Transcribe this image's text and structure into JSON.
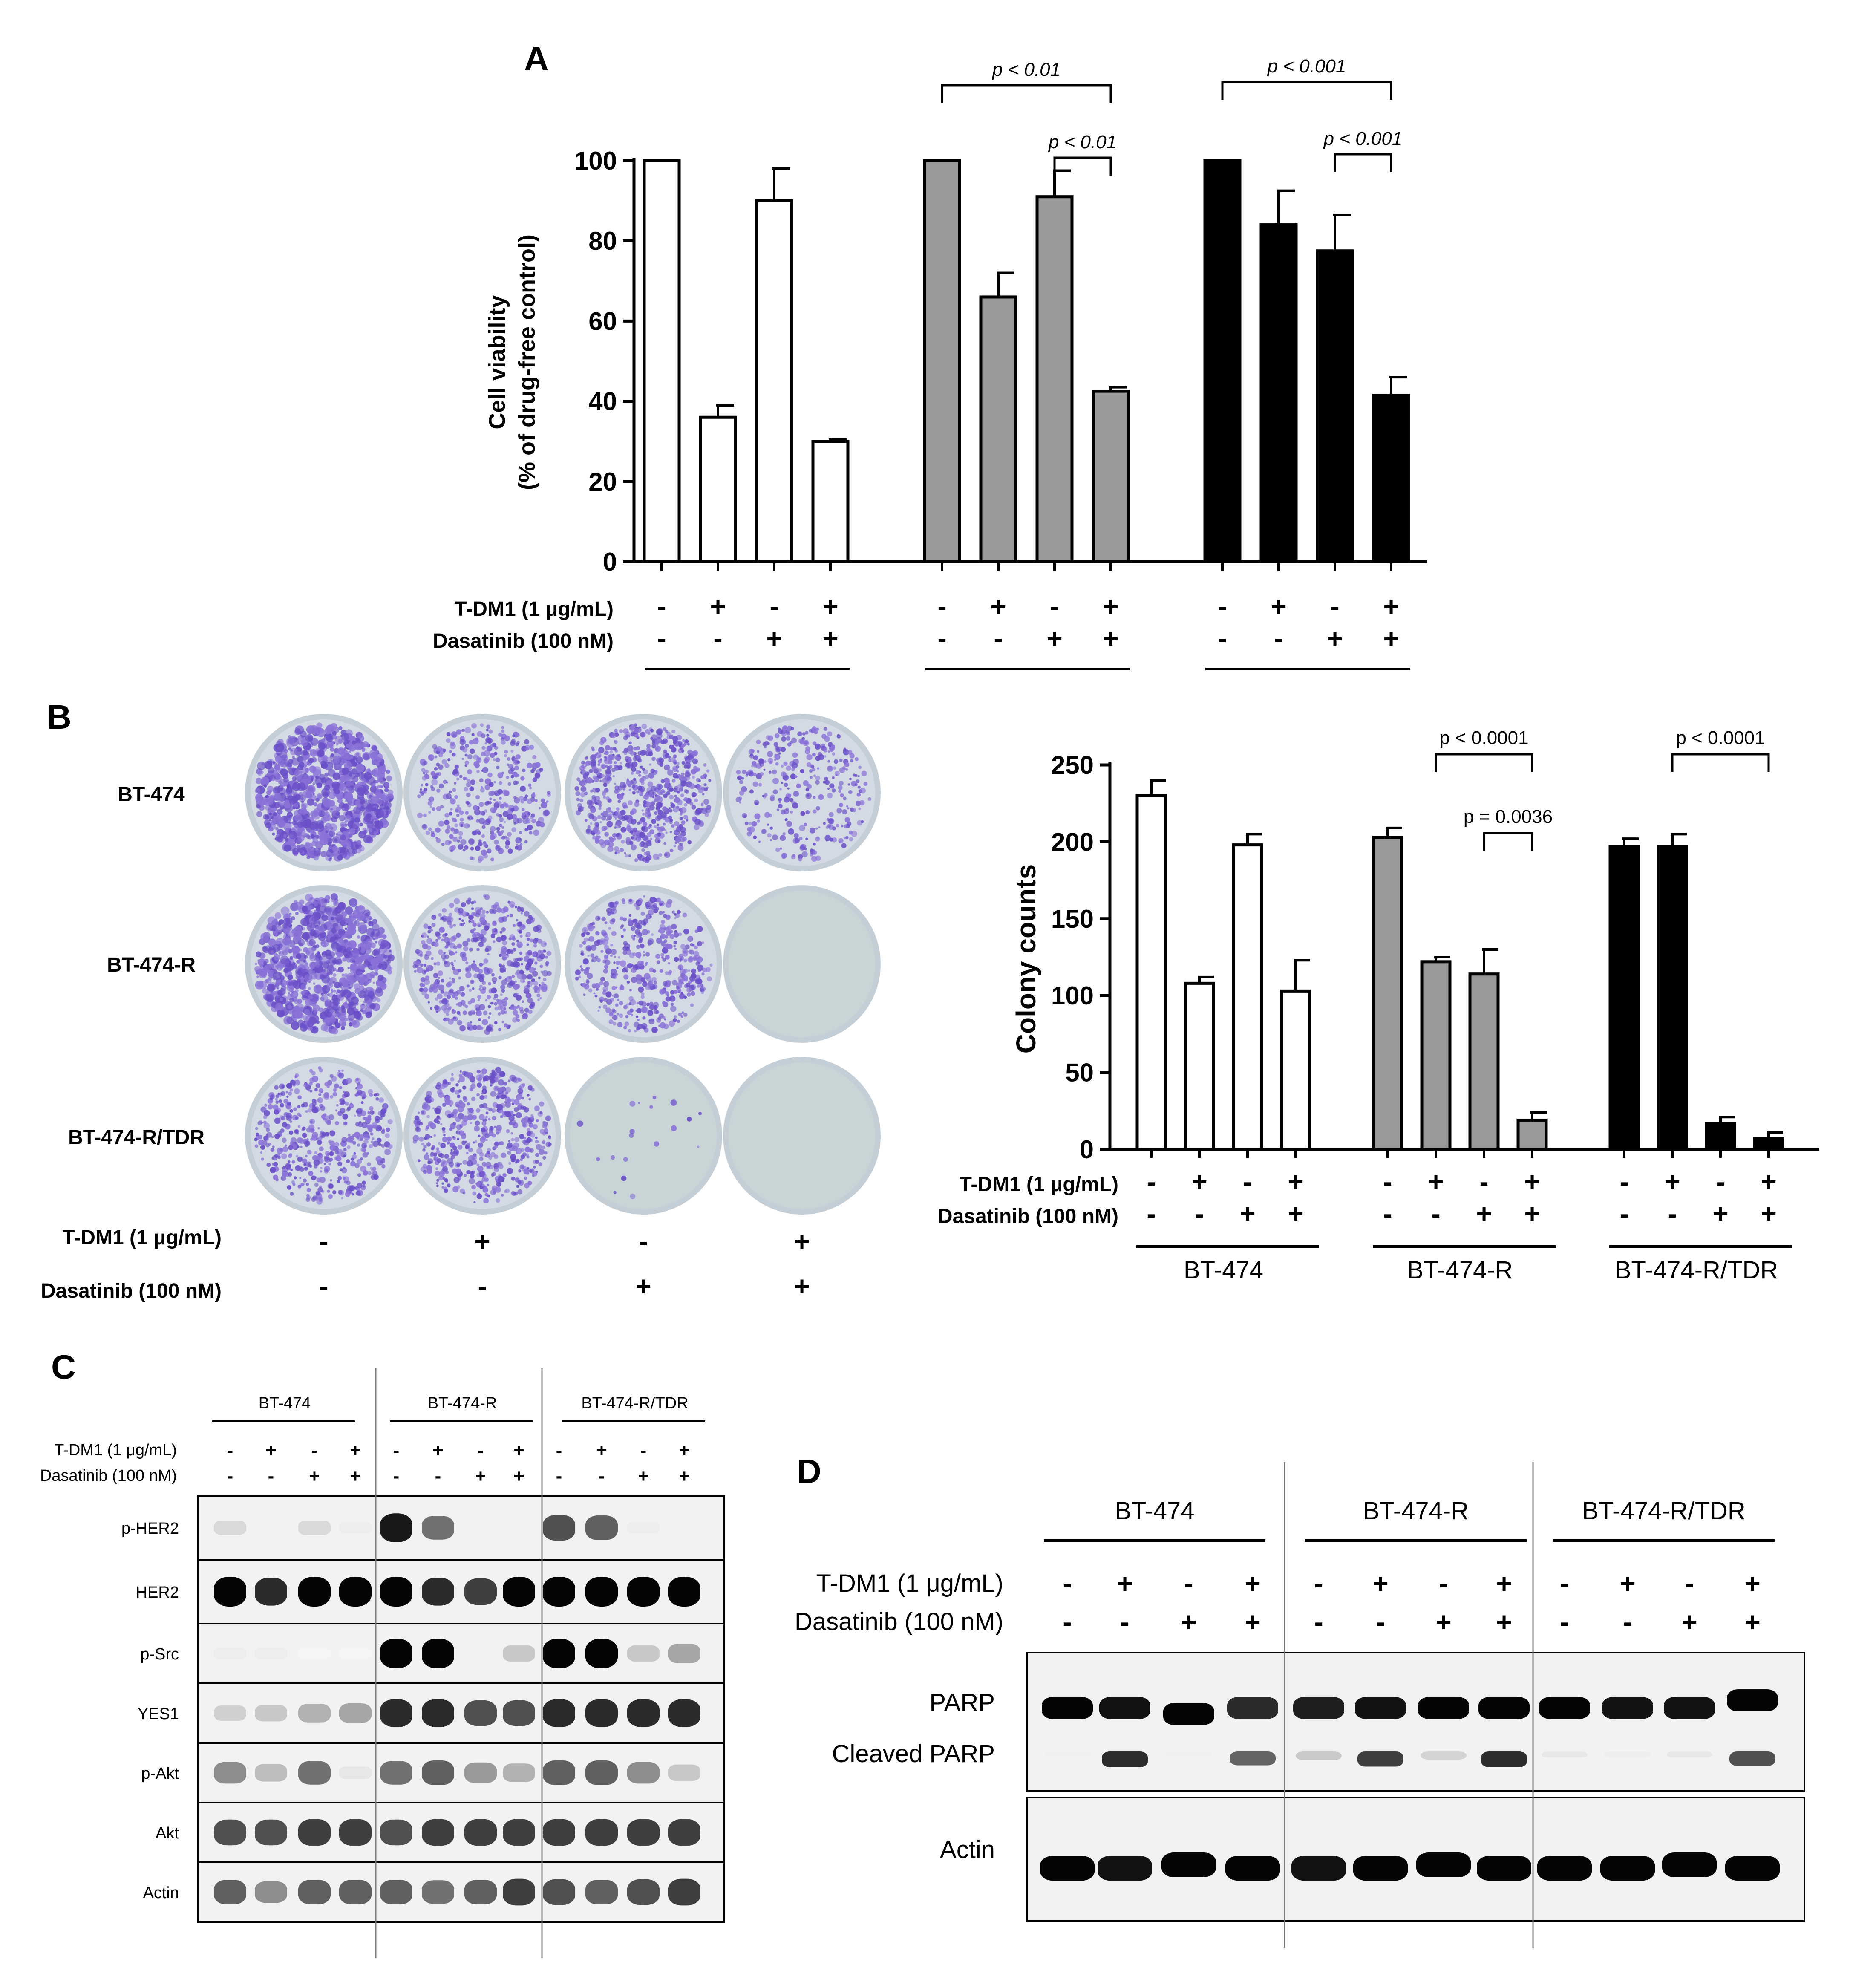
{
  "panels": {
    "A": {
      "letter": "A",
      "chart_data": {
        "type": "bar",
        "ylabel_line1": "Cell viability",
        "ylabel_line2": "(% of drug-free control)",
        "ylim": [
          0,
          100
        ],
        "yticks": [
          0,
          20,
          40,
          60,
          80,
          100
        ],
        "treatment_labels": [
          "T-DM1 (1 μg/mL)",
          "Dasatinib (100 nM)"
        ],
        "tdm1_signs": [
          "-",
          "+",
          "-",
          "+"
        ],
        "dasatinib_signs": [
          "-",
          "-",
          "+",
          "+"
        ],
        "group_colors": [
          "#ffffff",
          "#999999",
          "#000000"
        ],
        "groups": [
          {
            "values": [
              100,
              36,
              90,
              30
            ],
            "errors": [
              0,
              3,
              8,
              0.5
            ]
          },
          {
            "values": [
              100,
              66,
              91,
              42.5
            ],
            "errors": [
              0,
              6,
              6.5,
              1
            ]
          },
          {
            "values": [
              100,
              84,
              77.5,
              41.5
            ],
            "errors": [
              0,
              8.5,
              9,
              4.5
            ]
          }
        ],
        "annotations": [
          {
            "group": 1,
            "from": 0,
            "to": 3,
            "text": "p < 0.01"
          },
          {
            "group": 1,
            "from": 2,
            "to": 3,
            "text": "p < 0.01"
          },
          {
            "group": 2,
            "from": 0,
            "to": 3,
            "text": "p < 0.001"
          },
          {
            "group": 2,
            "from": 2,
            "to": 3,
            "text": "p < 0.001"
          }
        ]
      }
    },
    "B": {
      "letter": "B",
      "row_labels": [
        "BT-474",
        "BT-474-R",
        "BT-474-R/TDR"
      ],
      "plate_density": [
        [
          1.0,
          0.45,
          0.75,
          0.35
        ],
        [
          1.0,
          0.6,
          0.5,
          0.0
        ],
        [
          0.55,
          0.6,
          0.02,
          0.0
        ]
      ],
      "treatment_labels": [
        "T-DM1 (1 μg/mL)",
        "Dasatinib (100 nM)"
      ],
      "tdm1_signs": [
        "-",
        "+",
        "-",
        "+"
      ],
      "dasatinib_signs": [
        "-",
        "-",
        "+",
        "+"
      ],
      "chart_data": {
        "type": "bar",
        "ylabel": "Colony counts",
        "ylim": [
          0,
          250
        ],
        "yticks": [
          0,
          50,
          100,
          150,
          200,
          250
        ],
        "group_names": [
          "BT-474",
          "BT-474-R",
          "BT-474-R/TDR"
        ],
        "group_colors": [
          "#ffffff",
          "#999999",
          "#000000"
        ],
        "groups": [
          {
            "values": [
              230,
              108,
              198,
              103
            ],
            "errors": [
              10,
              4,
              7,
              20
            ]
          },
          {
            "values": [
              203,
              122,
              114,
              19
            ],
            "errors": [
              6,
              3,
              16,
              5
            ]
          },
          {
            "values": [
              197,
              197,
              17,
              7
            ],
            "errors": [
              5,
              8,
              4,
              4
            ]
          }
        ],
        "annotations": [
          {
            "group": 1,
            "from": 1,
            "to": 3,
            "text": "p < 0.0001"
          },
          {
            "group": 1,
            "from": 2,
            "to": 3,
            "text": "p = 0.0036"
          },
          {
            "group": 2,
            "from": 1,
            "to": 3,
            "text": "p < 0.0001"
          }
        ]
      }
    },
    "C": {
      "letter": "C",
      "group_names": [
        "BT-474",
        "BT-474-R",
        "BT-474-R/TDR"
      ],
      "treatment_labels": [
        "T-DM1 (1 μg/mL)",
        "Dasatinib (100 nM)"
      ],
      "tdm1_signs": [
        "-",
        "+",
        "-",
        "+"
      ],
      "dasatinib_signs": [
        "-",
        "-",
        "+",
        "+"
      ],
      "blots": [
        {
          "label": "p-HER2",
          "intensities": [
            0.25,
            0.05,
            0.25,
            0.1,
            0.95,
            0.7,
            0.05,
            0.05,
            0.8,
            0.75,
            0.1,
            0.05
          ]
        },
        {
          "label": "HER2",
          "intensities": [
            1,
            0.9,
            1,
            1,
            1,
            0.9,
            0.85,
            1,
            1,
            1,
            1,
            1
          ]
        },
        {
          "label": "p-Src",
          "intensities": [
            0.1,
            0.1,
            0,
            0,
            1,
            1,
            0.05,
            0.35,
            1,
            1,
            0.35,
            0.5
          ]
        },
        {
          "label": "YES1",
          "intensities": [
            0.3,
            0.35,
            0.45,
            0.5,
            0.9,
            0.9,
            0.8,
            0.8,
            0.9,
            0.9,
            0.9,
            0.9
          ]
        },
        {
          "label": "p-Akt",
          "intensities": [
            0.6,
            0.4,
            0.7,
            0.15,
            0.7,
            0.75,
            0.55,
            0.45,
            0.75,
            0.75,
            0.6,
            0.35
          ]
        },
        {
          "label": "Akt",
          "intensities": [
            0.8,
            0.8,
            0.85,
            0.85,
            0.8,
            0.85,
            0.85,
            0.85,
            0.85,
            0.85,
            0.85,
            0.85
          ]
        },
        {
          "label": "Actin",
          "intensities": [
            0.75,
            0.6,
            0.75,
            0.75,
            0.75,
            0.7,
            0.75,
            0.85,
            0.8,
            0.75,
            0.8,
            0.85
          ]
        }
      ]
    },
    "D": {
      "letter": "D",
      "group_names": [
        "BT-474",
        "BT-474-R",
        "BT-474-R/TDR"
      ],
      "treatment_labels": [
        "T-DM1 (1 μg/mL)",
        "Dasatinib (100 nM)"
      ],
      "tdm1_signs": [
        "-",
        "+",
        "-",
        "+"
      ],
      "dasatinib_signs": [
        "-",
        "-",
        "+",
        "+"
      ],
      "parp_label": "PARP",
      "cleaved_label": "Cleaved PARP",
      "actin_label": "Actin",
      "parp_intensities": [
        1,
        0.95,
        1,
        0.85,
        0.9,
        0.95,
        1,
        1,
        1,
        0.95,
        0.95,
        1
      ],
      "cleaved_intensities": [
        0.08,
        0.9,
        0.08,
        0.75,
        0.35,
        0.85,
        0.3,
        0.9,
        0.15,
        0.1,
        0.15,
        0.8
      ],
      "actin_intensities": [
        1,
        0.95,
        1,
        1,
        0.95,
        1,
        1,
        1,
        1,
        1,
        1,
        1
      ]
    }
  }
}
